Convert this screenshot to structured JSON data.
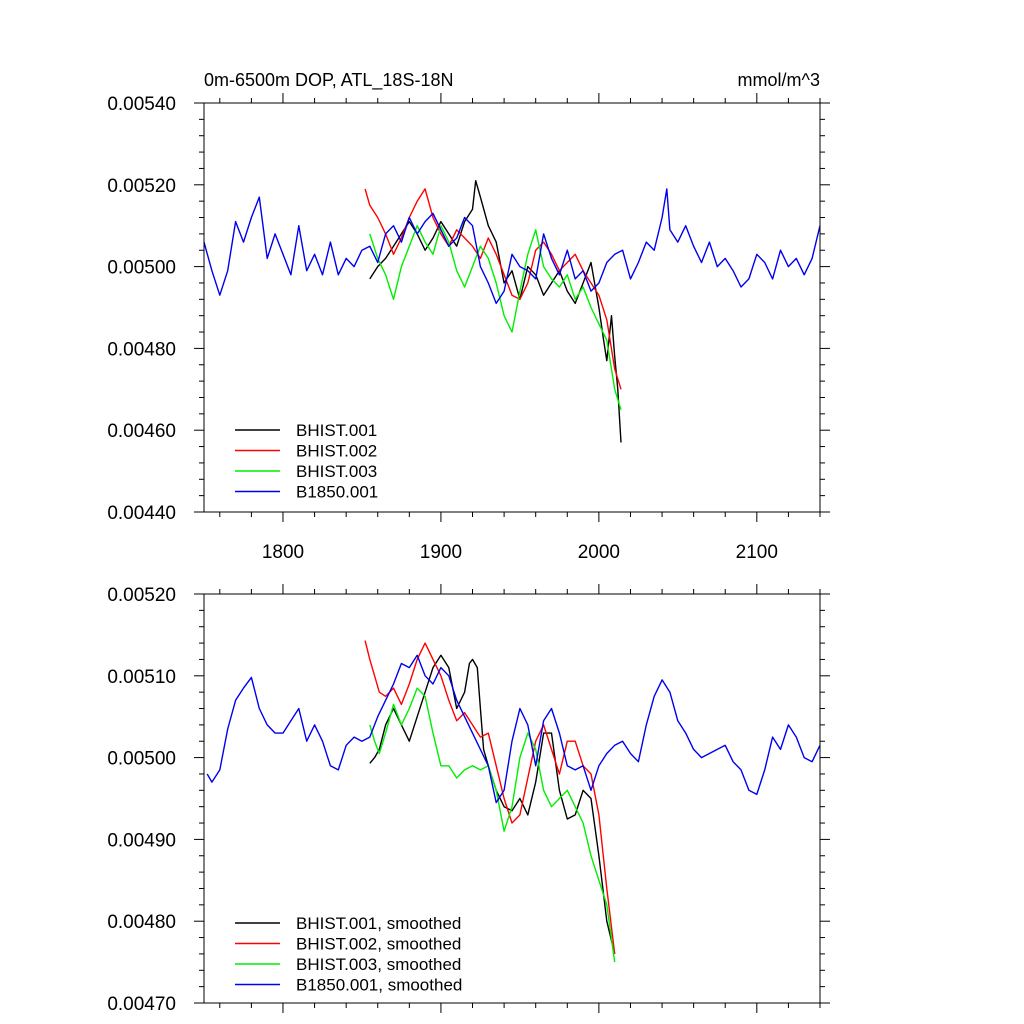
{
  "chart_data": [
    {
      "type": "line",
      "title": "0m-6500m DOP, ATL_18S-18N",
      "units": "mmol/m^3",
      "xlabel": "",
      "ylabel": "",
      "xlim": [
        1750,
        2140
      ],
      "ylim": [
        0.0044,
        0.0054
      ],
      "x_ticks": [
        "1800",
        "1900",
        "2000",
        "2100"
      ],
      "y_ticks": [
        "0.00440",
        "0.00460",
        "0.00480",
        "0.00500",
        "0.00520",
        "0.00540"
      ],
      "legend_position": "bottom-left",
      "series": [
        {
          "name": "BHIST.001",
          "color": "#000000",
          "x": [
            1855,
            1860,
            1865,
            1870,
            1875,
            1880,
            1885,
            1890,
            1895,
            1900,
            1905,
            1910,
            1915,
            1920,
            1922,
            1925,
            1930,
            1935,
            1940,
            1945,
            1950,
            1955,
            1960,
            1965,
            1970,
            1975,
            1980,
            1985,
            1990,
            1995,
            2000,
            2003,
            2005,
            2008,
            2010,
            2012,
            2014
          ],
          "values": [
            0.00497,
            0.005,
            0.00502,
            0.00505,
            0.00508,
            0.00511,
            0.00508,
            0.00504,
            0.00507,
            0.00511,
            0.00508,
            0.00505,
            0.00511,
            0.00514,
            0.00521,
            0.00517,
            0.0051,
            0.00506,
            0.00496,
            0.00499,
            0.00492,
            0.005,
            0.00498,
            0.00493,
            0.00496,
            0.00499,
            0.00494,
            0.00491,
            0.00496,
            0.00501,
            0.0049,
            0.00482,
            0.00477,
            0.00488,
            0.00478,
            0.0047,
            0.00457
          ]
        },
        {
          "name": "BHIST.002",
          "color": "#ff0000",
          "x": [
            1852,
            1855,
            1860,
            1865,
            1870,
            1875,
            1880,
            1885,
            1890,
            1895,
            1900,
            1905,
            1910,
            1915,
            1920,
            1925,
            1930,
            1935,
            1940,
            1945,
            1950,
            1955,
            1960,
            1965,
            1970,
            1975,
            1980,
            1985,
            1990,
            1995,
            2000,
            2005,
            2010,
            2014
          ],
          "values": [
            0.00519,
            0.00515,
            0.00512,
            0.00508,
            0.00503,
            0.00507,
            0.00512,
            0.00516,
            0.00519,
            0.00512,
            0.00508,
            0.00505,
            0.00509,
            0.00507,
            0.00505,
            0.00502,
            0.00507,
            0.00503,
            0.00498,
            0.00493,
            0.00492,
            0.00496,
            0.00504,
            0.00506,
            0.00503,
            0.00499,
            0.00501,
            0.00503,
            0.00499,
            0.00496,
            0.00493,
            0.00487,
            0.00475,
            0.0047
          ]
        },
        {
          "name": "BHIST.003",
          "color": "#00ee00",
          "x": [
            1855,
            1860,
            1865,
            1870,
            1875,
            1880,
            1885,
            1890,
            1895,
            1900,
            1905,
            1910,
            1915,
            1920,
            1925,
            1930,
            1935,
            1940,
            1945,
            1950,
            1955,
            1960,
            1965,
            1970,
            1975,
            1980,
            1985,
            1990,
            1995,
            2000,
            2005,
            2010,
            2014
          ],
          "values": [
            0.00508,
            0.00502,
            0.00498,
            0.00492,
            0.005,
            0.00505,
            0.0051,
            0.00506,
            0.00503,
            0.0051,
            0.00506,
            0.00499,
            0.00495,
            0.005,
            0.00505,
            0.00502,
            0.00496,
            0.00488,
            0.00484,
            0.00494,
            0.00503,
            0.00509,
            0.005,
            0.00497,
            0.00495,
            0.00498,
            0.00492,
            0.00495,
            0.0049,
            0.00486,
            0.00482,
            0.0047,
            0.00465
          ]
        },
        {
          "name": "B1850.001",
          "color": "#0000ee",
          "x": [
            1750,
            1755,
            1760,
            1765,
            1770,
            1775,
            1780,
            1785,
            1790,
            1795,
            1800,
            1805,
            1810,
            1815,
            1820,
            1825,
            1830,
            1835,
            1840,
            1845,
            1850,
            1855,
            1860,
            1865,
            1870,
            1875,
            1880,
            1885,
            1890,
            1895,
            1900,
            1905,
            1910,
            1915,
            1920,
            1925,
            1930,
            1935,
            1940,
            1945,
            1950,
            1955,
            1960,
            1965,
            1970,
            1975,
            1980,
            1985,
            1990,
            1995,
            2000,
            2005,
            2010,
            2015,
            2020,
            2025,
            2030,
            2035,
            2040,
            2043,
            2045,
            2050,
            2055,
            2060,
            2065,
            2070,
            2075,
            2080,
            2085,
            2090,
            2095,
            2100,
            2105,
            2110,
            2115,
            2120,
            2125,
            2130,
            2135,
            2140
          ],
          "values": [
            0.00506,
            0.00499,
            0.00493,
            0.00499,
            0.00511,
            0.00506,
            0.00512,
            0.00517,
            0.00502,
            0.00508,
            0.00503,
            0.00498,
            0.0051,
            0.00499,
            0.00503,
            0.00498,
            0.00506,
            0.00498,
            0.00502,
            0.005,
            0.00504,
            0.00505,
            0.00501,
            0.00508,
            0.0051,
            0.00506,
            0.00512,
            0.00508,
            0.00511,
            0.00513,
            0.00509,
            0.00505,
            0.00507,
            0.00512,
            0.0051,
            0.005,
            0.00496,
            0.00491,
            0.00494,
            0.00503,
            0.005,
            0.00499,
            0.00497,
            0.00508,
            0.00502,
            0.00498,
            0.00504,
            0.00497,
            0.00499,
            0.00494,
            0.00496,
            0.00501,
            0.00503,
            0.00504,
            0.00497,
            0.00501,
            0.00506,
            0.00504,
            0.00512,
            0.00519,
            0.00509,
            0.00506,
            0.0051,
            0.00505,
            0.00501,
            0.00506,
            0.005,
            0.00502,
            0.00499,
            0.00495,
            0.00497,
            0.00503,
            0.00501,
            0.00497,
            0.00504,
            0.005,
            0.00502,
            0.00498,
            0.00502,
            0.0051
          ]
        }
      ]
    },
    {
      "type": "line",
      "title": "",
      "xlabel": "",
      "ylabel": "",
      "xlim": [
        1750,
        2140
      ],
      "ylim": [
        0.0047,
        0.0052
      ],
      "x_ticks": [],
      "y_ticks": [
        "0.00470",
        "0.00480",
        "0.00490",
        "0.00500",
        "0.00510",
        "0.00520"
      ],
      "legend_position": "bottom-left",
      "series": [
        {
          "name": "BHIST.001, smoothed",
          "color": "#000000",
          "x": [
            1855,
            1858,
            1861,
            1865,
            1870,
            1875,
            1880,
            1885,
            1890,
            1895,
            1900,
            1905,
            1910,
            1915,
            1918,
            1920,
            1923,
            1925,
            1927,
            1930,
            1935,
            1940,
            1945,
            1950,
            1955,
            1960,
            1965,
            1970,
            1975,
            1980,
            1985,
            1990,
            1995,
            2000,
            2005,
            2010
          ],
          "values": [
            0.004993,
            0.005,
            0.00501,
            0.00504,
            0.00506,
            0.00504,
            0.00502,
            0.00505,
            0.00508,
            0.00511,
            0.005125,
            0.00511,
            0.00506,
            0.00508,
            0.005115,
            0.00512,
            0.00511,
            0.00506,
            0.00501,
            0.00499,
            0.00496,
            0.00494,
            0.004935,
            0.00495,
            0.00493,
            0.00497,
            0.00503,
            0.00503,
            0.00496,
            0.004925,
            0.00493,
            0.00496,
            0.00495,
            0.00488,
            0.0048,
            0.00476
          ]
        },
        {
          "name": "BHIST.002, smoothed",
          "color": "#ff0000",
          "x": [
            1852,
            1855,
            1858,
            1861,
            1865,
            1870,
            1875,
            1880,
            1885,
            1890,
            1895,
            1900,
            1905,
            1910,
            1915,
            1920,
            1925,
            1930,
            1935,
            1940,
            1945,
            1950,
            1955,
            1960,
            1965,
            1970,
            1975,
            1980,
            1985,
            1990,
            1995,
            2000,
            2005,
            2010
          ],
          "values": [
            0.005143,
            0.00512,
            0.0051,
            0.00508,
            0.005075,
            0.005085,
            0.005065,
            0.00509,
            0.00512,
            0.00514,
            0.00512,
            0.0051,
            0.00507,
            0.005045,
            0.005055,
            0.00504,
            0.005025,
            0.00503,
            0.00499,
            0.00495,
            0.00492,
            0.00493,
            0.004975,
            0.00502,
            0.00504,
            0.00501,
            0.00498,
            0.00502,
            0.00502,
            0.00499,
            0.00498,
            0.00493,
            0.00484,
            0.00476
          ]
        },
        {
          "name": "BHIST.003, smoothed",
          "color": "#00ee00",
          "x": [
            1855,
            1858,
            1861,
            1865,
            1870,
            1875,
            1880,
            1885,
            1890,
            1895,
            1900,
            1905,
            1910,
            1915,
            1920,
            1925,
            1930,
            1935,
            1940,
            1945,
            1950,
            1955,
            1960,
            1965,
            1970,
            1975,
            1980,
            1985,
            1990,
            1995,
            2000,
            2005,
            2010
          ],
          "values": [
            0.00504,
            0.00502,
            0.005005,
            0.00503,
            0.005065,
            0.00504,
            0.00506,
            0.005085,
            0.005075,
            0.00503,
            0.00499,
            0.00499,
            0.004975,
            0.004985,
            0.00499,
            0.004985,
            0.00499,
            0.00496,
            0.00491,
            0.00494,
            0.005,
            0.00503,
            0.00501,
            0.00496,
            0.00494,
            0.00495,
            0.00496,
            0.00494,
            0.00492,
            0.00488,
            0.00485,
            0.00482,
            0.00475
          ]
        },
        {
          "name": "B1850.001, smoothed",
          "color": "#0000ee",
          "x": [
            1752,
            1755,
            1760,
            1765,
            1770,
            1775,
            1780,
            1785,
            1790,
            1795,
            1800,
            1805,
            1810,
            1815,
            1820,
            1825,
            1830,
            1835,
            1840,
            1845,
            1850,
            1855,
            1860,
            1865,
            1870,
            1875,
            1880,
            1885,
            1890,
            1895,
            1900,
            1905,
            1910,
            1915,
            1920,
            1925,
            1930,
            1935,
            1940,
            1945,
            1950,
            1955,
            1960,
            1965,
            1970,
            1975,
            1980,
            1985,
            1990,
            1995,
            2000,
            2005,
            2010,
            2015,
            2020,
            2025,
            2030,
            2035,
            2040,
            2045,
            2050,
            2055,
            2060,
            2065,
            2070,
            2075,
            2080,
            2085,
            2090,
            2095,
            2100,
            2105,
            2110,
            2115,
            2120,
            2125,
            2130,
            2135,
            2140
          ],
          "values": [
            0.00498,
            0.00497,
            0.004985,
            0.005035,
            0.00507,
            0.005085,
            0.005098,
            0.00506,
            0.00504,
            0.00503,
            0.00503,
            0.005045,
            0.00506,
            0.00502,
            0.00504,
            0.00502,
            0.00499,
            0.004985,
            0.005015,
            0.005025,
            0.00502,
            0.005025,
            0.00505,
            0.00507,
            0.00509,
            0.005115,
            0.00511,
            0.005125,
            0.0051,
            0.00509,
            0.00511,
            0.0051,
            0.00507,
            0.00505,
            0.00503,
            0.00501,
            0.00499,
            0.004945,
            0.00496,
            0.00502,
            0.00506,
            0.00504,
            0.00499,
            0.005045,
            0.00506,
            0.00503,
            0.00499,
            0.004985,
            0.00499,
            0.00496,
            0.00499,
            0.005005,
            0.005015,
            0.00502,
            0.005005,
            0.004995,
            0.00504,
            0.005075,
            0.005095,
            0.00508,
            0.005045,
            0.00503,
            0.00501,
            0.005,
            0.005005,
            0.00501,
            0.005015,
            0.004995,
            0.004985,
            0.00496,
            0.004955,
            0.004985,
            0.005025,
            0.00501,
            0.00504,
            0.005025,
            0.005,
            0.004995,
            0.005015
          ]
        }
      ]
    }
  ]
}
